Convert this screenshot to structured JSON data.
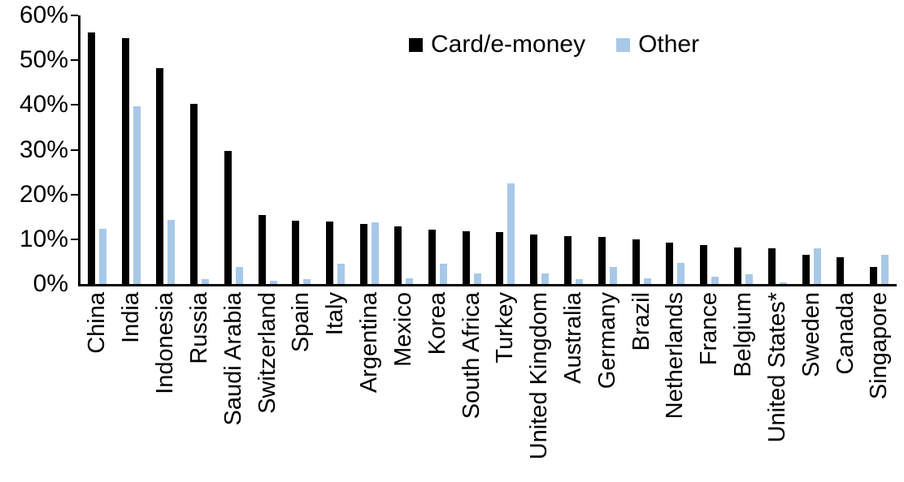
{
  "chart_data": {
    "type": "bar",
    "title": "",
    "xlabel": "",
    "ylabel": "",
    "ylim": [
      0,
      60
    ],
    "yticks": [
      0,
      10,
      20,
      30,
      40,
      50,
      60
    ],
    "ytick_labels": [
      "0%",
      "10%",
      "20%",
      "30%",
      "40%",
      "50%",
      "60%"
    ],
    "grid": false,
    "legend_position": "top-center",
    "categories": [
      "China",
      "India",
      "Indonesia",
      "Russia",
      "Saudi Arabia",
      "Switzerland",
      "Spain",
      "Italy",
      "Argentina",
      "Mexico",
      "Korea",
      "South Africa",
      "Turkey",
      "United Kingdom",
      "Australia",
      "Germany",
      "Brazil",
      "Netherlands",
      "France",
      "Belgium",
      "United States*",
      "Sweden",
      "Canada",
      "Singapore"
    ],
    "series": [
      {
        "name": "Card/e-money",
        "color": "#000000",
        "values": [
          56.2,
          55.0,
          48.2,
          40.3,
          29.8,
          15.5,
          14.2,
          14.0,
          13.4,
          12.9,
          12.1,
          11.7,
          11.6,
          11.0,
          10.7,
          10.6,
          9.9,
          9.2,
          8.7,
          8.1,
          7.9,
          6.5,
          5.9,
          3.9
        ]
      },
      {
        "name": "Other",
        "color": "#A8C8E8",
        "values": [
          12.3,
          39.7,
          14.4,
          1.0,
          3.9,
          0.7,
          1.0,
          4.6,
          13.8,
          1.3,
          4.6,
          2.4,
          22.5,
          2.3,
          1.1,
          3.9,
          1.2,
          4.8,
          1.6,
          2.1,
          0.3,
          8.0,
          0,
          6.6
        ]
      }
    ]
  }
}
